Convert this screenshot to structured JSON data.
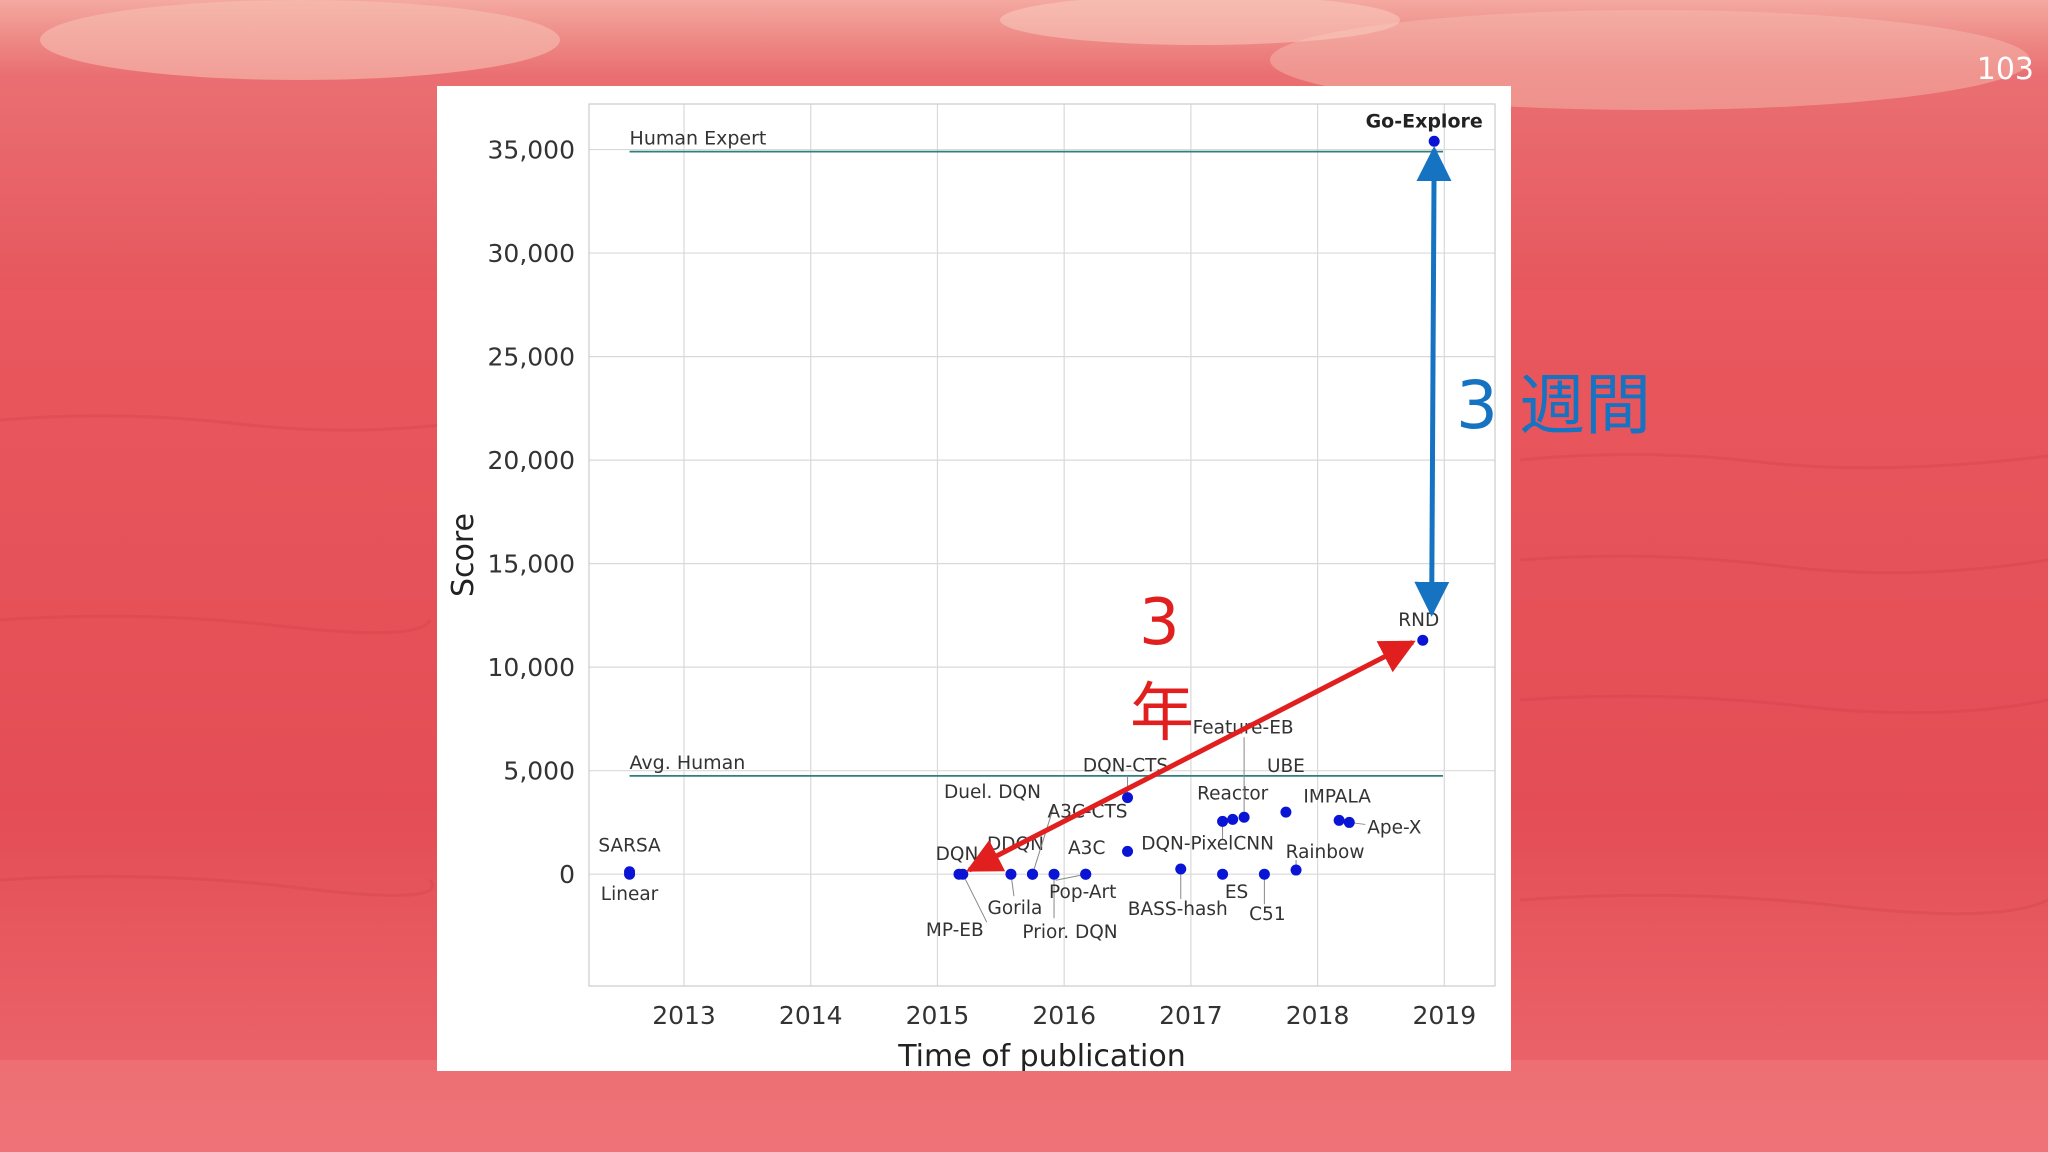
{
  "slide": {
    "number": "103"
  },
  "annotations": {
    "weeks_label": "3 週間",
    "years_label_line1": "3",
    "years_label_line2": "年",
    "weeks_color": "#1673c2",
    "years_color": "#e11f1f"
  },
  "colors": {
    "point": "#0a14d4",
    "reference_line": "#2f7f7f",
    "grid": "#d9d9d9"
  },
  "chart_data": {
    "type": "scatter",
    "xlabel": "Time of publication",
    "ylabel": "Score",
    "xlim": [
      2012.25,
      2019.4
    ],
    "ylim": [
      -5400,
      37200
    ],
    "xticks": [
      2013,
      2014,
      2015,
      2016,
      2017,
      2018,
      2019
    ],
    "xtick_labels": [
      "2013",
      "2014",
      "2015",
      "2016",
      "2017",
      "2018",
      "2019"
    ],
    "yticks": [
      0,
      5000,
      10000,
      15000,
      20000,
      25000,
      30000,
      35000
    ],
    "ytick_labels": [
      "0",
      "5,000",
      "10,000",
      "15,000",
      "20,000",
      "25,000",
      "30,000",
      "35,000"
    ],
    "grid": true,
    "reference_lines": [
      {
        "label": "Human Expert",
        "y": 34900,
        "x_start": 2012.57,
        "x_end": 2018.99
      },
      {
        "label": "Avg. Human",
        "y": 4750,
        "x_start": 2012.57,
        "x_end": 2018.99
      }
    ],
    "points": [
      {
        "x": 2012.57,
        "y": 120,
        "label": "SARSA"
      },
      {
        "x": 2012.57,
        "y": 0,
        "label": "Linear"
      },
      {
        "x": 2015.17,
        "y": 0,
        "label": "DQN"
      },
      {
        "x": 2015.2,
        "y": 0,
        "label": "MP-EB"
      },
      {
        "x": 2015.58,
        "y": 0,
        "label": "Gorila"
      },
      {
        "x": 2015.75,
        "y": 0,
        "label": "DDQN"
      },
      {
        "x": 2015.75,
        "y": 0,
        "label": "Duel. DQN"
      },
      {
        "x": 2015.92,
        "y": 0,
        "label": "Prior. DQN"
      },
      {
        "x": 2016.17,
        "y": 0,
        "label": "A3C"
      },
      {
        "x": 2016.17,
        "y": 0,
        "label": "Pop-Art"
      },
      {
        "x": 2016.5,
        "y": 1100,
        "label": "A3C-CTS"
      },
      {
        "x": 2016.5,
        "y": 3700,
        "label": "DQN-CTS"
      },
      {
        "x": 2016.92,
        "y": 250,
        "label": "BASS-hash"
      },
      {
        "x": 2017.25,
        "y": 0,
        "label": "ES"
      },
      {
        "x": 2017.25,
        "y": 2550,
        "label": "DQN-PixelCNN"
      },
      {
        "x": 2017.33,
        "y": 2650,
        "label": "Reactor"
      },
      {
        "x": 2017.42,
        "y": 2750,
        "label": "Feature-EB"
      },
      {
        "x": 2017.58,
        "y": 0,
        "label": "C51"
      },
      {
        "x": 2017.75,
        "y": 3000,
        "label": "UBE"
      },
      {
        "x": 2017.83,
        "y": 200,
        "label": "Rainbow"
      },
      {
        "x": 2018.17,
        "y": 2600,
        "label": "IMPALA"
      },
      {
        "x": 2018.25,
        "y": 2500,
        "label": "Ape-X"
      },
      {
        "x": 2018.83,
        "y": 11300,
        "label": "RND"
      },
      {
        "x": 2018.92,
        "y": 35400,
        "label": "Go-Explore"
      }
    ],
    "arrows": [
      {
        "from": {
          "x": 2018.9,
          "y": 12600
        },
        "to": {
          "x": 2018.92,
          "y": 35000
        },
        "color": "#1673c2",
        "double": true
      },
      {
        "from": {
          "x": 2015.25,
          "y": 200
        },
        "to": {
          "x": 2018.75,
          "y": 11200
        },
        "color": "#e11f1f",
        "double": true
      }
    ]
  }
}
